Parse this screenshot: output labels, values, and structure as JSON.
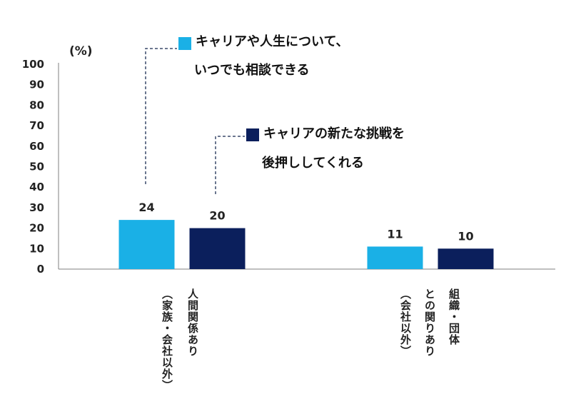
{
  "chart_data": {
    "type": "bar",
    "unit_label": "(%)",
    "ylim": [
      0,
      100
    ],
    "yticks": [
      0,
      10,
      20,
      30,
      40,
      50,
      60,
      70,
      80,
      90,
      100
    ],
    "grid": false,
    "categories": [
      {
        "name": "人間関係あり（家族・会社以外）",
        "lines": [
          "人間関係あり",
          "（家族・会社以外）"
        ]
      },
      {
        "name": "組織・団体との関りあり（会社以外）",
        "lines": [
          "組織・団体",
          "との関りあり",
          "（会社以外）"
        ]
      }
    ],
    "series": [
      {
        "name": "キャリアや人生について、いつでも相談できる",
        "legend_lines": [
          "キャリアや人生について、",
          "いつでも相談できる"
        ],
        "color": "#1ab0e6",
        "values": [
          24,
          11
        ]
      },
      {
        "name": "キャリアの新たな挑戦を後押ししてくれる",
        "legend_lines": [
          "キャリアの新たな挑戦を",
          "後押ししてくれる"
        ],
        "color": "#0b1f5c",
        "values": [
          20,
          10
        ]
      }
    ]
  }
}
